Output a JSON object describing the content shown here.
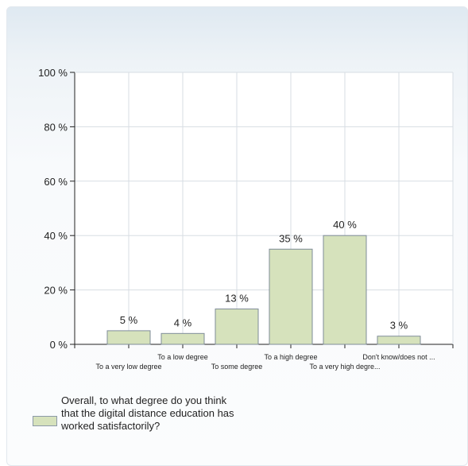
{
  "chart_data": {
    "type": "bar",
    "categories": [
      "To a very low degree",
      "To a low degree",
      "To some degree",
      "To a high degree",
      "To a very high degre...",
      "Don't know/does not ..."
    ],
    "series": [
      {
        "name": "Overall, to what degree do you think that the digital distance education has worked satisfactorily?",
        "values": [
          5,
          4,
          13,
          35,
          40,
          3
        ]
      }
    ],
    "data_labels": [
      "5 %",
      "4 %",
      "13 %",
      "35 %",
      "40 %",
      "3 %"
    ],
    "ylim": [
      0,
      100
    ],
    "yticks": [
      0,
      20,
      40,
      60,
      80,
      100
    ],
    "ytick_labels": [
      "0 %",
      "20 %",
      "40 %",
      "60 %",
      "80 %",
      "100 %"
    ],
    "grid": true,
    "legend_position": "bottom-left",
    "bar_color": "#d6e2bc",
    "bar_stroke": "#7f8c99"
  },
  "legend": {
    "label": "Overall, to what degree do you think that the digital distance education has worked satisfactorily?"
  }
}
